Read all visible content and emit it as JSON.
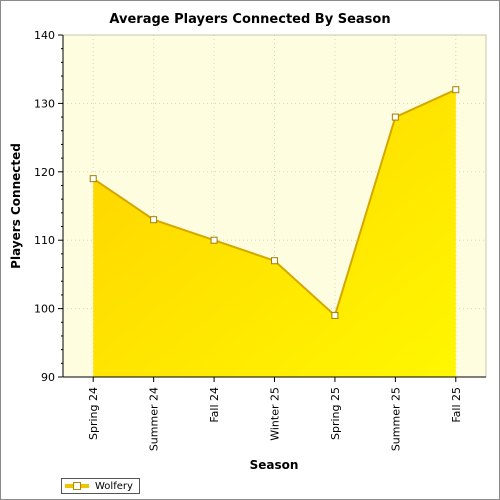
{
  "chart_data": {
    "type": "area",
    "title": "Average Players Connected By Season",
    "xlabel": "Season",
    "ylabel": "Players Connected",
    "categories": [
      "Spring 24",
      "Summer 24",
      "Fall 24",
      "Winter 25",
      "Spring 25",
      "Summer 25",
      "Fall 25"
    ],
    "series": [
      {
        "name": "Wolfery",
        "values": [
          119,
          113,
          110,
          107,
          99,
          128,
          132
        ]
      }
    ],
    "ylim": [
      90,
      140
    ],
    "yticks": [
      90,
      100,
      110,
      120,
      130,
      140
    ],
    "grid": true,
    "legend_position": "bottom-left",
    "colors": {
      "plot_background": "#fffde0",
      "area_light": "#fff700",
      "area_dark": "#ffd200",
      "line": "#d4a800",
      "grid": "#d6d6b0"
    }
  }
}
